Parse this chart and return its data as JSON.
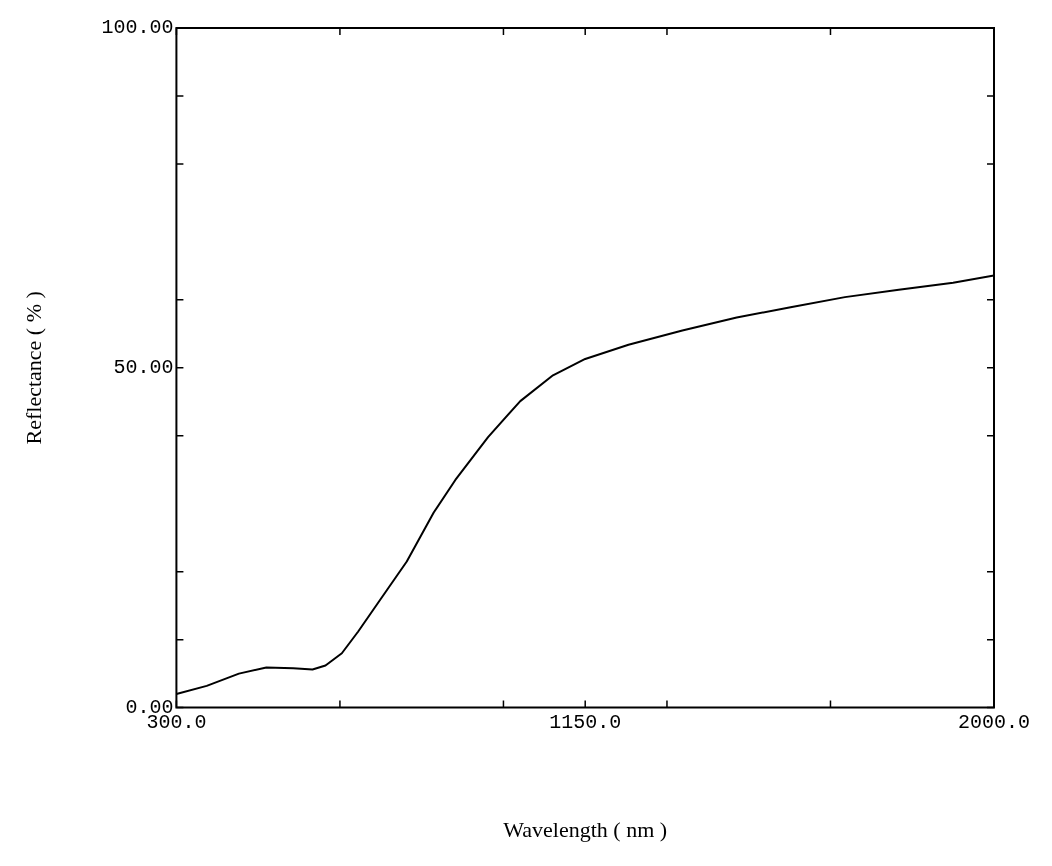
{
  "chart_data": {
    "type": "line",
    "xlabel": "Wavelength ( nm )",
    "ylabel": "Reflectance ( % )",
    "xlim": [
      300,
      2000
    ],
    "xticks": [
      {
        "value": 300,
        "label": "300.0"
      },
      {
        "value": 640,
        "label": null
      },
      {
        "value": 980,
        "label": null
      },
      {
        "value": 1150,
        "label": "1150.0"
      },
      {
        "value": 1320,
        "label": null
      },
      {
        "value": 1660,
        "label": null
      },
      {
        "value": 2000,
        "label": "2000.0"
      }
    ],
    "ylim": [
      0,
      100
    ],
    "yticks": [
      {
        "value": 0,
        "label": "0.00"
      },
      {
        "value": 10,
        "label": null
      },
      {
        "value": 20,
        "label": null
      },
      {
        "value": 40,
        "label": null
      },
      {
        "value": 50,
        "label": "50.00"
      },
      {
        "value": 60,
        "label": null
      },
      {
        "value": 80,
        "label": null
      },
      {
        "value": 90,
        "label": null
      },
      {
        "value": 100,
        "label": "100.00"
      }
    ],
    "grid": false,
    "legend": false,
    "marker": "none",
    "line_style": "solid",
    "x": [
      300,
      363,
      430,
      487,
      543,
      583,
      610,
      644,
      678,
      723,
      779,
      835,
      880,
      948,
      1015,
      1083,
      1150,
      1240,
      1352,
      1465,
      1577,
      1690,
      1802,
      1915,
      2000
    ],
    "series": [
      {
        "color": "#000000",
        "values": [
          2.0,
          3.2,
          5.0,
          5.9,
          5.8,
          5.6,
          6.2,
          8.0,
          11.2,
          15.8,
          21.5,
          28.7,
          33.5,
          39.8,
          45.1,
          48.9,
          51.3,
          53.4,
          55.5,
          57.4,
          58.9,
          60.4,
          61.5,
          62.5,
          63.6
        ]
      }
    ]
  }
}
